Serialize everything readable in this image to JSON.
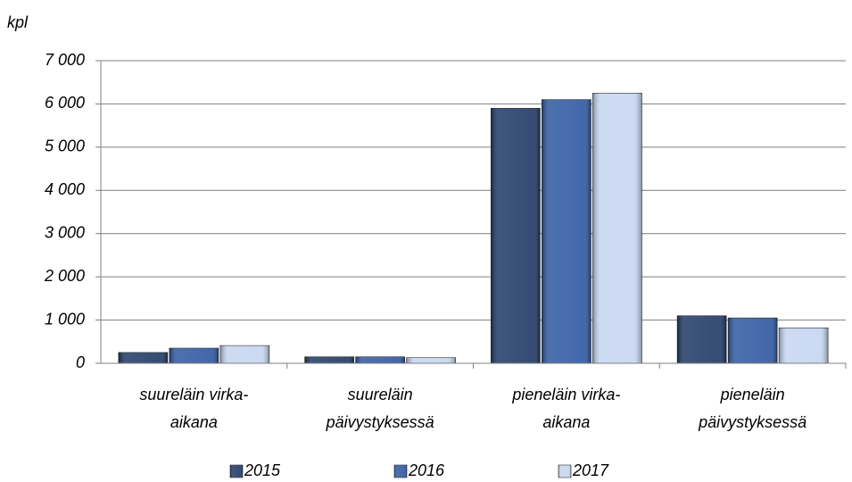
{
  "chart_data": {
    "type": "bar",
    "y_label": "kpl",
    "categories": [
      [
        "suureläin virka-",
        "aikana"
      ],
      [
        "suureläin",
        "päivystyksessä"
      ],
      [
        "pieneläin virka-",
        "aikana"
      ],
      [
        "pieneläin",
        "päivystyksessä"
      ]
    ],
    "series": [
      {
        "name": "2015",
        "color": "#1f3864",
        "values": [
          250,
          150,
          5900,
          1100
        ]
      },
      {
        "name": "2016",
        "color": "#2e57a0",
        "values": [
          350,
          150,
          6100,
          1050
        ]
      },
      {
        "name": "2017",
        "color": "#c5d5f0",
        "values": [
          410,
          130,
          6250,
          820
        ]
      }
    ],
    "ylim": [
      0,
      7000
    ],
    "yticks": [
      0,
      {
        "value": 1000,
        "label": "1 000"
      },
      {
        "value": 2000,
        "label": "2 000"
      },
      {
        "value": 3000,
        "label": "3 000"
      },
      {
        "value": 4000,
        "label": "4 000"
      },
      {
        "value": 5000,
        "label": "5 000"
      },
      {
        "value": 6000,
        "label": "6 000"
      },
      {
        "value": 7000,
        "label": "7 000"
      }
    ],
    "grid": true,
    "legend": "bottom"
  }
}
